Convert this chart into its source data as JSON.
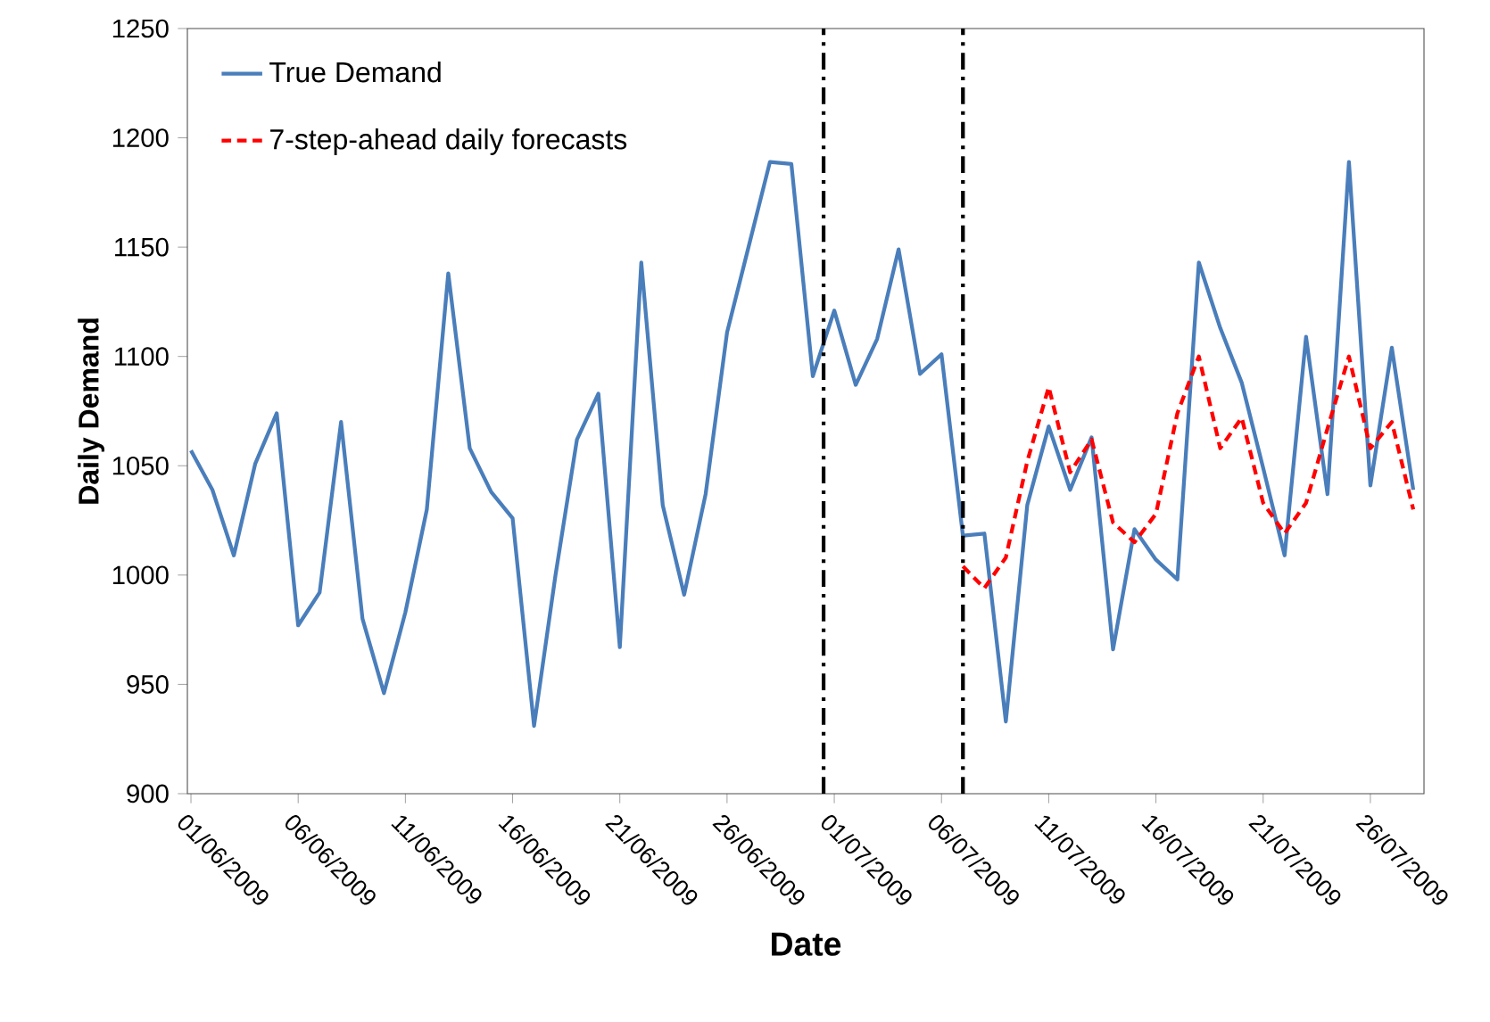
{
  "chart_data": {
    "type": "line",
    "xlabel": "Date",
    "ylabel": "Daily Demand",
    "x": [
      "2009-06-01",
      "2009-06-02",
      "2009-06-03",
      "2009-06-04",
      "2009-06-05",
      "2009-06-06",
      "2009-06-07",
      "2009-06-08",
      "2009-06-09",
      "2009-06-10",
      "2009-06-11",
      "2009-06-12",
      "2009-06-13",
      "2009-06-14",
      "2009-06-15",
      "2009-06-16",
      "2009-06-17",
      "2009-06-18",
      "2009-06-19",
      "2009-06-20",
      "2009-06-21",
      "2009-06-22",
      "2009-06-23",
      "2009-06-24",
      "2009-06-25",
      "2009-06-26",
      "2009-06-27",
      "2009-06-28",
      "2009-06-29",
      "2009-06-30",
      "2009-07-01",
      "2009-07-02",
      "2009-07-03",
      "2009-07-04",
      "2009-07-05",
      "2009-07-06",
      "2009-07-07",
      "2009-07-08",
      "2009-07-09",
      "2009-07-10",
      "2009-07-11",
      "2009-07-12",
      "2009-07-13",
      "2009-07-14",
      "2009-07-15",
      "2009-07-16",
      "2009-07-17",
      "2009-07-18",
      "2009-07-19",
      "2009-07-20",
      "2009-07-21",
      "2009-07-22",
      "2009-07-23",
      "2009-07-24",
      "2009-07-25",
      "2009-07-26",
      "2009-07-27",
      "2009-07-28"
    ],
    "series": [
      {
        "name": "True Demand",
        "color": "#4a7ebb",
        "line_style": "solid",
        "values": [
          1057,
          1039,
          1009,
          1051,
          1074,
          977,
          992,
          1070,
          980,
          946,
          983,
          1030,
          1138,
          1058,
          1038,
          1026,
          931,
          1000,
          1062,
          1083,
          967,
          1143,
          1032,
          991,
          1037,
          1111,
          1150,
          1189,
          1188,
          1091,
          1121,
          1087,
          1108,
          1149,
          1092,
          1101,
          1018,
          1019,
          933,
          1032,
          1068,
          1039,
          1063,
          966,
          1021,
          1007,
          998,
          1143,
          1113,
          1088,
          1049,
          1009,
          1109,
          1037,
          1189,
          1041,
          1104,
          1039
        ]
      },
      {
        "name": "7-step-ahead daily forecasts",
        "color": "#ff0000",
        "line_style": "dashed",
        "x": [
          "2009-07-07",
          "2009-07-08",
          "2009-07-09",
          "2009-07-10",
          "2009-07-11",
          "2009-07-12",
          "2009-07-13",
          "2009-07-14",
          "2009-07-15",
          "2009-07-16",
          "2009-07-17",
          "2009-07-18",
          "2009-07-19",
          "2009-07-20",
          "2009-07-21",
          "2009-07-22",
          "2009-07-23",
          "2009-07-24",
          "2009-07-25",
          "2009-07-26",
          "2009-07-27",
          "2009-07-28"
        ],
        "values": [
          1004,
          994,
          1008,
          1052,
          1086,
          1047,
          1062,
          1024,
          1015,
          1028,
          1074,
          1100,
          1058,
          1072,
          1033,
          1019,
          1033,
          1067,
          1100,
          1058,
          1070,
          1030
        ]
      }
    ],
    "xlim": [
      "2009-05-31T20:00",
      "2009-07-28T12:00"
    ],
    "xticks": [
      {
        "value": "2009-06-01",
        "label": "01/06/2009"
      },
      {
        "value": "2009-06-06",
        "label": "06/06/2009"
      },
      {
        "value": "2009-06-11",
        "label": "11/06/2009"
      },
      {
        "value": "2009-06-16",
        "label": "16/06/2009"
      },
      {
        "value": "2009-06-21",
        "label": "21/06/2009"
      },
      {
        "value": "2009-06-26",
        "label": "26/06/2009"
      },
      {
        "value": "2009-07-01",
        "label": "01/07/2009"
      },
      {
        "value": "2009-07-06",
        "label": "06/07/2009"
      },
      {
        "value": "2009-07-11",
        "label": "11/07/2009"
      },
      {
        "value": "2009-07-16",
        "label": "16/07/2009"
      },
      {
        "value": "2009-07-21",
        "label": "21/07/2009"
      },
      {
        "value": "2009-07-26",
        "label": "26/07/2009"
      }
    ],
    "ylim": [
      900,
      1250
    ],
    "yticks": [
      900,
      950,
      1000,
      1050,
      1100,
      1150,
      1200,
      1250
    ],
    "ref_lines": [
      {
        "axis": "x",
        "value": "2009-06-30T12:00",
        "color": "#000000",
        "line_style": "dashdot"
      },
      {
        "axis": "x",
        "value": "2009-07-07",
        "color": "#000000",
        "line_style": "dashdot"
      }
    ],
    "grid": false,
    "legend": "top left",
    "marker": "none"
  }
}
